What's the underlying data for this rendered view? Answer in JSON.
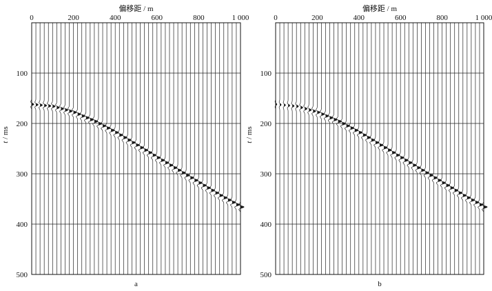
{
  "chart_data": [
    {
      "type": "seismic-wiggle",
      "panel_label": "a",
      "xlabel": "偏移距 / m",
      "ylabel": "t / ms",
      "xlim": [
        0,
        1000
      ],
      "ylim": [
        0,
        500
      ],
      "x_ticks": [
        "0",
        "200",
        "400",
        "600",
        "800",
        "1 000"
      ],
      "y_ticks": [
        "100",
        "200",
        "300",
        "400",
        "500"
      ],
      "trace_spacing_m": 20,
      "trace_count": 51,
      "event": {
        "arrival_time_ms": [
          {
            "offset": 0,
            "t": 162
          },
          {
            "offset": 100,
            "t": 166
          },
          {
            "offset": 200,
            "t": 178
          },
          {
            "offset": 300,
            "t": 196
          },
          {
            "offset": 400,
            "t": 218
          },
          {
            "offset": 500,
            "t": 243
          },
          {
            "offset": 600,
            "t": 268
          },
          {
            "offset": 700,
            "t": 293
          },
          {
            "offset": 800,
            "t": 318
          },
          {
            "offset": 900,
            "t": 343
          },
          {
            "offset": 1000,
            "t": 366
          }
        ],
        "wavelet_width_ms": 13,
        "wavelet_amplitude_traces": 0.85,
        "low_offset_amplitude": 0.6
      }
    },
    {
      "type": "seismic-wiggle",
      "panel_label": "b",
      "xlabel": "偏移距 / m",
      "ylabel": "t / ms",
      "xlim": [
        0,
        1000
      ],
      "ylim": [
        0,
        500
      ],
      "x_ticks": [
        "0",
        "200",
        "400",
        "600",
        "800",
        "1 000"
      ],
      "y_ticks": [
        "100",
        "200",
        "300",
        "400",
        "500"
      ],
      "trace_spacing_m": 20,
      "trace_count": 51,
      "event": {
        "arrival_time_ms": [
          {
            "offset": 0,
            "t": 162
          },
          {
            "offset": 100,
            "t": 166
          },
          {
            "offset": 200,
            "t": 178
          },
          {
            "offset": 300,
            "t": 196
          },
          {
            "offset": 400,
            "t": 218
          },
          {
            "offset": 500,
            "t": 243
          },
          {
            "offset": 600,
            "t": 268
          },
          {
            "offset": 700,
            "t": 293
          },
          {
            "offset": 800,
            "t": 318
          },
          {
            "offset": 900,
            "t": 343
          },
          {
            "offset": 1000,
            "t": 366
          }
        ],
        "wavelet_width_ms": 13,
        "wavelet_amplitude_traces": 0.85,
        "low_offset_amplitude": 0.35
      }
    }
  ],
  "colors": {
    "trace": "#222222",
    "fill": "#1a1a1a",
    "grid": "#222222",
    "frame": "#111111"
  }
}
